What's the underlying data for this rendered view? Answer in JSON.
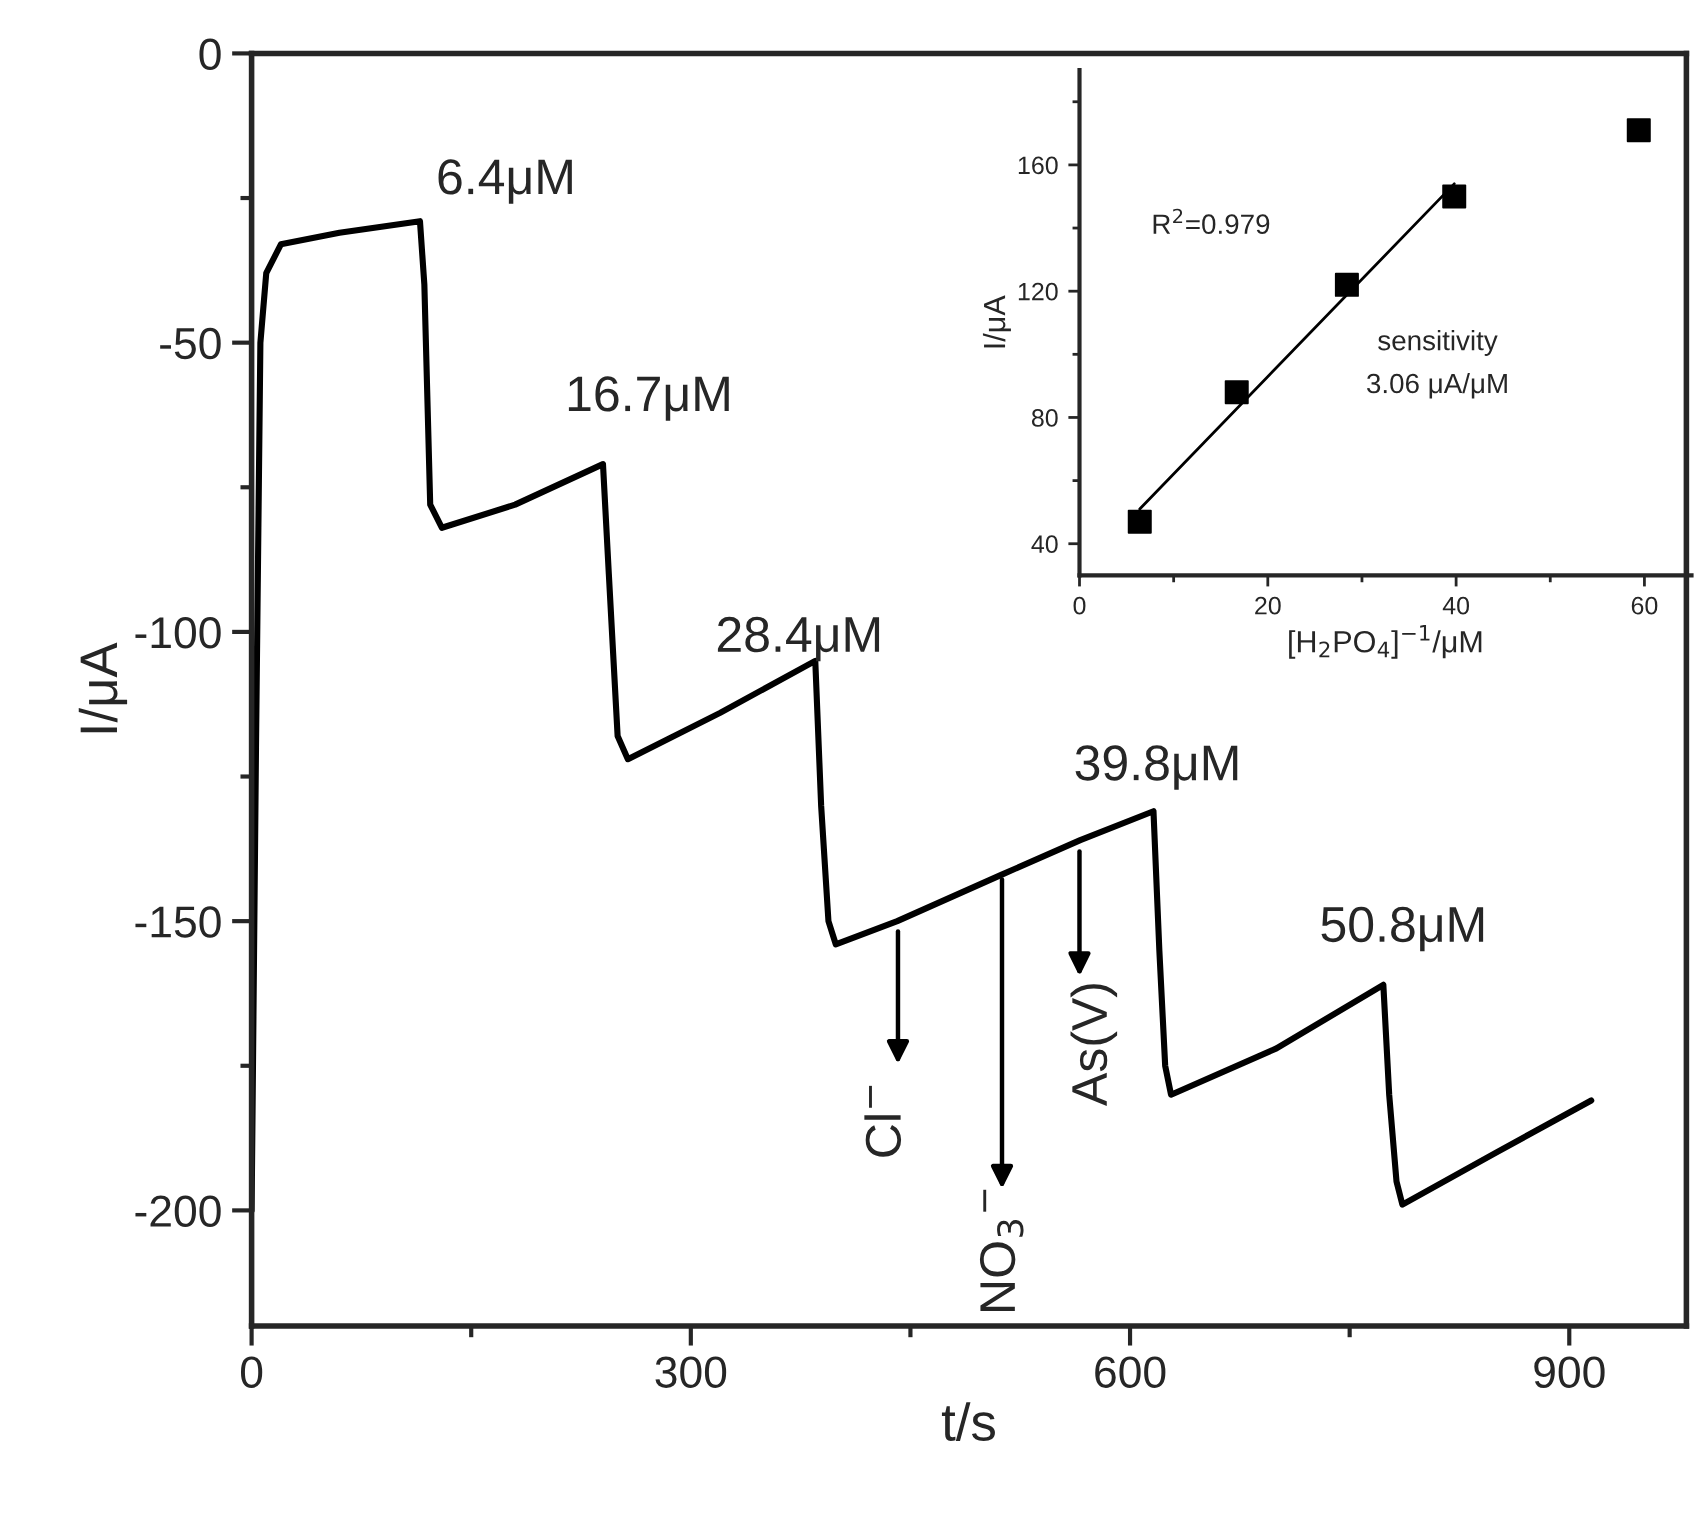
{
  "chart_data": [
    {
      "type": "line",
      "xlabel": "t/s",
      "ylabel": "I/μA",
      "x": [
        0,
        3,
        6,
        10,
        20,
        60,
        115,
        118,
        122,
        130,
        180,
        240,
        244,
        250,
        257,
        320,
        385,
        389,
        394,
        399,
        441,
        512,
        566,
        616,
        620,
        624,
        628,
        700,
        773,
        777,
        782,
        786,
        850,
        915
      ],
      "series": [
        {
          "color": "#000000",
          "values": [
            -200,
            -120,
            -50,
            -38,
            -33,
            -31,
            -29,
            -40,
            -78,
            -82,
            -78,
            -71,
            -90,
            -118,
            -122,
            -114,
            -105,
            -130,
            -150,
            -154,
            -150,
            -142,
            -136,
            -131,
            -155,
            -175,
            -180,
            -172,
            -161,
            -180,
            -195,
            -199,
            -190,
            -181
          ]
        }
      ],
      "xlim": [
        0,
        980
      ],
      "ylim": [
        -220,
        0
      ],
      "xticks": [
        0,
        {
          "value": 150,
          "label": null
        },
        300,
        {
          "value": 450,
          "label": null
        },
        600,
        {
          "value": 750,
          "label": null
        },
        900
      ],
      "yticks": [
        0,
        {
          "value": -25,
          "label": null
        },
        -50,
        {
          "value": -75,
          "label": null
        },
        -100,
        {
          "value": -125,
          "label": null
        },
        -150,
        {
          "value": -175,
          "label": null
        },
        -200
      ],
      "marker": "none",
      "line_style": "solid",
      "grid": false,
      "legend": false,
      "annotations": [
        {
          "text": "6.4μM",
          "x": 115,
          "y": -29
        },
        {
          "text": "16.7μM",
          "x": 240,
          "y": -71
        },
        {
          "text": "28.4μM",
          "x": 385,
          "y": -105
        },
        {
          "text": "39.8μM",
          "x": 616,
          "y": -131
        },
        {
          "text": "50.8μM",
          "x": 773,
          "y": -161
        },
        "Cl$^{−}$",
        "NO$_{3}$$^{−}$",
        "As(V)"
      ]
    },
    {
      "type": "scatter",
      "xlabel": "[H$_{2}$PO$_{4}$]$^{−1}$/μM",
      "ylabel": "I/μA",
      "series": [
        {
          "type": "scatter",
          "color": "#000000",
          "marker": "square",
          "x": [
            6.4,
            16.7,
            28.4,
            39.8,
            59.4
          ],
          "values": [
            47,
            88,
            122,
            150,
            171
          ]
        },
        {
          "type": "line",
          "color": "#000000",
          "marker": "none",
          "x": [
            6.4,
            39.8
          ],
          "values": [
            51,
            154
          ]
        }
      ],
      "xlim": [
        0,
        65
      ],
      "ylim": [
        30,
        190
      ],
      "xticks": [
        0,
        {
          "value": 10,
          "label": null
        },
        20,
        {
          "value": 30,
          "label": null
        },
        40,
        {
          "value": 50,
          "label": null
        },
        60
      ],
      "yticks": [
        40,
        {
          "value": 60,
          "label": null
        },
        80,
        {
          "value": 100,
          "label": null
        },
        120,
        {
          "value": 140,
          "label": null
        },
        160,
        {
          "value": 180,
          "label": null
        }
      ],
      "grid": false,
      "legend": false,
      "annotations": [
        "R$^{2}$=0.979",
        "sensitivity",
        "3.06 μA/μM"
      ]
    }
  ]
}
